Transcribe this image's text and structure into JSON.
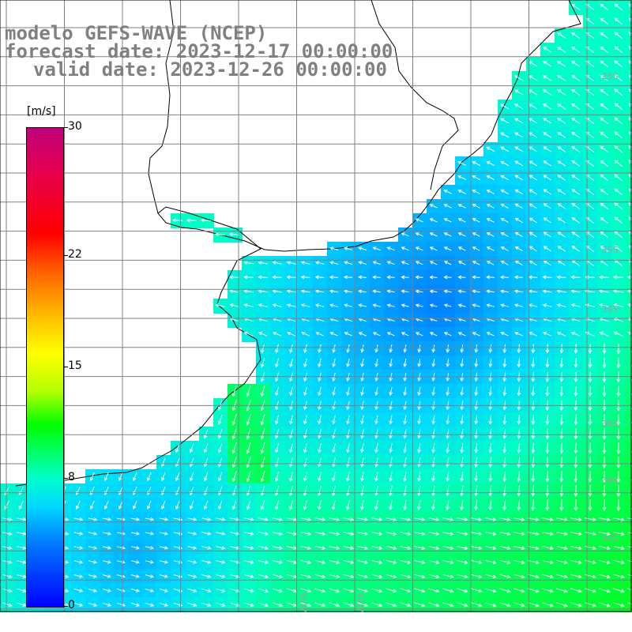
{
  "title": {
    "line1": "modelo GEFS-WAVE (NCEP)",
    "line2": "forecast date: 2023-12-17 00:00:00",
    "line3": "valid date: 2023-12-26 00:00:00"
  },
  "colorbar": {
    "units": "[m/s]",
    "min": 0,
    "max": 30,
    "ticks": [
      {
        "label": "30",
        "value": 30
      },
      {
        "label": "22",
        "value": 22
      },
      {
        "label": "15",
        "value": 15
      },
      {
        "label": "8",
        "value": 8
      },
      {
        "label": "0",
        "value": 0
      }
    ],
    "colors": {
      "low": "#0000ff",
      "mid": "#00d8ff",
      "high": "#c0007a"
    }
  },
  "map": {
    "variable": "wind speed and direction",
    "land_color": "#ffffff",
    "coastline_color": "#000000",
    "grid_color": "#808080",
    "arrow_color": "#ffffff",
    "lat_labels": [
      "25S",
      "30S",
      "35S",
      "36S",
      "38S",
      "39S",
      "40S"
    ],
    "lon_labels": [
      "50W",
      "49W"
    ]
  }
}
